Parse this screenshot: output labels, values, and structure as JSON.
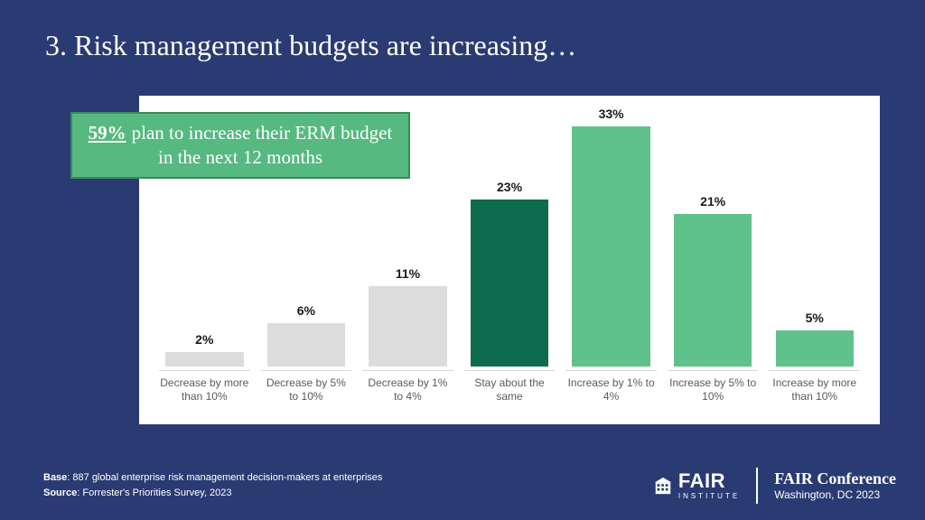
{
  "slide": {
    "background_color": "#2a3b73",
    "title": "3. Risk management budgets are increasing…",
    "title_color": "#ffffff",
    "title_fontsize": 32
  },
  "callout": {
    "pct": "59%",
    "text": "plan to increase their ERM budget in the next 12 months",
    "bg_color": "#56b980",
    "border_color": "#3a8a5e",
    "text_color": "#ffffff",
    "fontsize": 21
  },
  "chart": {
    "type": "bar",
    "panel_bg": "#ffffff",
    "value_label_color": "#1a1a1a",
    "value_label_fontsize": 14,
    "category_label_color": "#5a5a5a",
    "category_label_fontsize": 12,
    "ymax": 33,
    "bar_width_pct": 86,
    "bars": [
      {
        "label": "Decrease by more than 10%",
        "value": 2,
        "value_text": "2%",
        "color": "#dcdcdc"
      },
      {
        "label": "Decrease by 5% to 10%",
        "value": 6,
        "value_text": "6%",
        "color": "#dcdcdc"
      },
      {
        "label": "Decrease by 1% to 4%",
        "value": 11,
        "value_text": "11%",
        "color": "#dcdcdc"
      },
      {
        "label": "Stay about the same",
        "value": 23,
        "value_text": "23%",
        "color": "#0f6b4d"
      },
      {
        "label": "Increase by 1% to 4%",
        "value": 33,
        "value_text": "33%",
        "color": "#5fc28a"
      },
      {
        "label": "Increase by 5% to 10%",
        "value": 21,
        "value_text": "21%",
        "color": "#5fc28a"
      },
      {
        "label": "Increase by more than 10%",
        "value": 5,
        "value_text": "5%",
        "color": "#5fc28a"
      }
    ]
  },
  "footer": {
    "base_label": "Base",
    "base_text": ": 887 global enterprise risk management decision-makers at enterprises",
    "source_label": "Source",
    "source_text": ": Forrester's Priorities Survey, 2023",
    "color": "#ffffff",
    "fontsize": 11
  },
  "brand": {
    "logo_fair": "FAIR",
    "logo_sub": "INSTITUTE",
    "conf_name": "FAIR Conference",
    "conf_loc": "Washington, DC 2023",
    "color": "#ffffff"
  }
}
